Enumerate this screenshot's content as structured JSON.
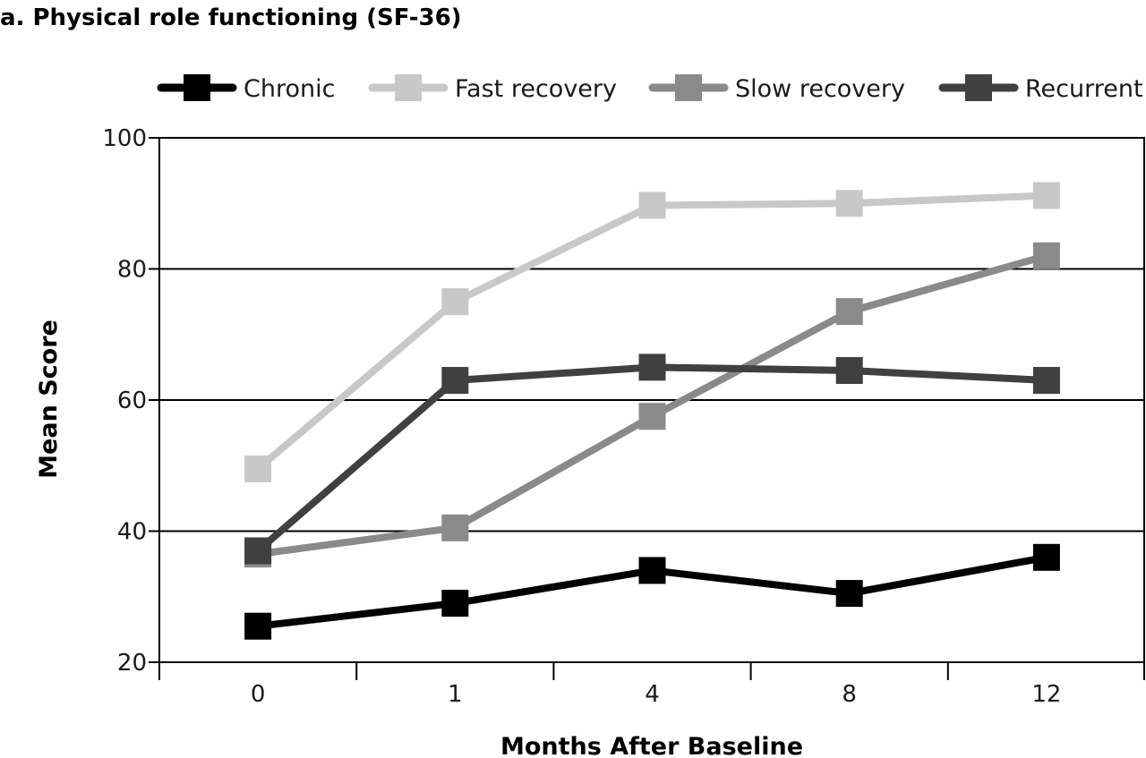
{
  "chart_data": {
    "type": "line",
    "title": "a. Physical role functioning (SF-36)",
    "xlabel": "Months After Baseline",
    "ylabel": "Mean Score",
    "categories": [
      "0",
      "1",
      "4",
      "8",
      "12"
    ],
    "ylim": [
      20,
      100
    ],
    "yticks": [
      20,
      40,
      60,
      80,
      100
    ],
    "grid": "horizontal",
    "legend_position": "top",
    "series": [
      {
        "name": "Chronic",
        "color": "#000000",
        "values": [
          25.5,
          29,
          34,
          30.5,
          36
        ]
      },
      {
        "name": "Fast recovery",
        "color": "#c8c8c8",
        "values": [
          49.5,
          75,
          89.7,
          90,
          91.2
        ]
      },
      {
        "name": "Slow recovery",
        "color": "#8a8a8a",
        "values": [
          36.5,
          40.5,
          57.5,
          73.5,
          82
        ]
      },
      {
        "name": "Recurrent",
        "color": "#404040",
        "values": [
          37,
          63,
          65,
          64.5,
          63
        ]
      }
    ]
  }
}
